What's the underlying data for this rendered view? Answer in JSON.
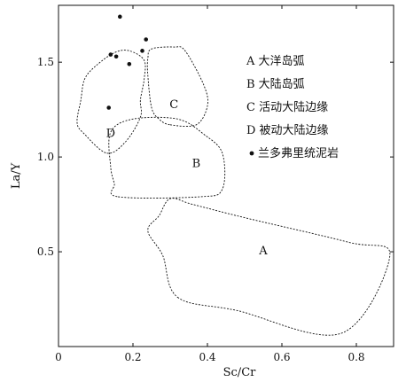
{
  "chart_data": {
    "type": "scatter",
    "xlabel": "Sc/Cr",
    "ylabel": "La/Y",
    "xlim": [
      0,
      0.9
    ],
    "ylim": [
      0,
      1.8
    ],
    "x_ticks": [
      "0",
      "0.2",
      "0.4",
      "0.6",
      "0.8"
    ],
    "y_ticks": [
      "0.5",
      "1.0",
      "1.5"
    ],
    "legend_position": "right",
    "legend": [
      {
        "key": "A",
        "label": "大洋岛弧"
      },
      {
        "key": "B",
        "label": "大陆岛弧"
      },
      {
        "key": "C",
        "label": "活动大陆边缘"
      },
      {
        "key": "D",
        "label": "被动大陆边缘"
      },
      {
        "key": "●",
        "label": "兰多弗里统泥岩"
      }
    ],
    "fields": [
      {
        "name": "A",
        "label_at": [
          0.55,
          0.51
        ],
        "polygon": [
          [
            0.32,
            0.26
          ],
          [
            0.48,
            0.19
          ],
          [
            0.76,
            0.07
          ],
          [
            0.89,
            0.48
          ],
          [
            0.78,
            0.55
          ],
          [
            0.5,
            0.68
          ],
          [
            0.36,
            0.75
          ],
          [
            0.3,
            0.78
          ],
          [
            0.27,
            0.69
          ],
          [
            0.24,
            0.61
          ],
          [
            0.28,
            0.48
          ]
        ]
      },
      {
        "name": "B",
        "label_at": [
          0.37,
          0.97
        ],
        "polygon": [
          [
            0.16,
            0.79
          ],
          [
            0.38,
            0.79
          ],
          [
            0.44,
            0.83
          ],
          [
            0.44,
            1.02
          ],
          [
            0.39,
            1.12
          ],
          [
            0.32,
            1.2
          ],
          [
            0.2,
            1.2
          ],
          [
            0.14,
            1.13
          ],
          [
            0.14,
            0.95
          ],
          [
            0.15,
            0.86
          ]
        ]
      },
      {
        "name": "C",
        "label_at": [
          0.31,
          1.28
        ],
        "polygon": [
          [
            0.3,
            1.17
          ],
          [
            0.37,
            1.17
          ],
          [
            0.4,
            1.27
          ],
          [
            0.39,
            1.38
          ],
          [
            0.34,
            1.56
          ],
          [
            0.31,
            1.58
          ],
          [
            0.25,
            1.57
          ],
          [
            0.24,
            1.52
          ],
          [
            0.24,
            1.43
          ],
          [
            0.25,
            1.26
          ],
          [
            0.27,
            1.2
          ]
        ]
      },
      {
        "name": "D",
        "label_at": [
          0.14,
          1.13
        ],
        "polygon": [
          [
            0.13,
            1.02
          ],
          [
            0.18,
            1.08
          ],
          [
            0.22,
            1.21
          ],
          [
            0.22,
            1.3
          ],
          [
            0.23,
            1.41
          ],
          [
            0.23,
            1.51
          ],
          [
            0.19,
            1.56
          ],
          [
            0.15,
            1.55
          ],
          [
            0.1,
            1.48
          ],
          [
            0.07,
            1.41
          ],
          [
            0.06,
            1.3
          ],
          [
            0.05,
            1.18
          ],
          [
            0.07,
            1.12
          ]
        ]
      }
    ],
    "series": [
      {
        "name": "兰多弗里统泥岩",
        "points": [
          [
            0.165,
            1.74
          ],
          [
            0.235,
            1.62
          ],
          [
            0.225,
            1.56
          ],
          [
            0.14,
            1.54
          ],
          [
            0.155,
            1.53
          ],
          [
            0.19,
            1.49
          ],
          [
            0.135,
            1.26
          ]
        ]
      }
    ]
  }
}
